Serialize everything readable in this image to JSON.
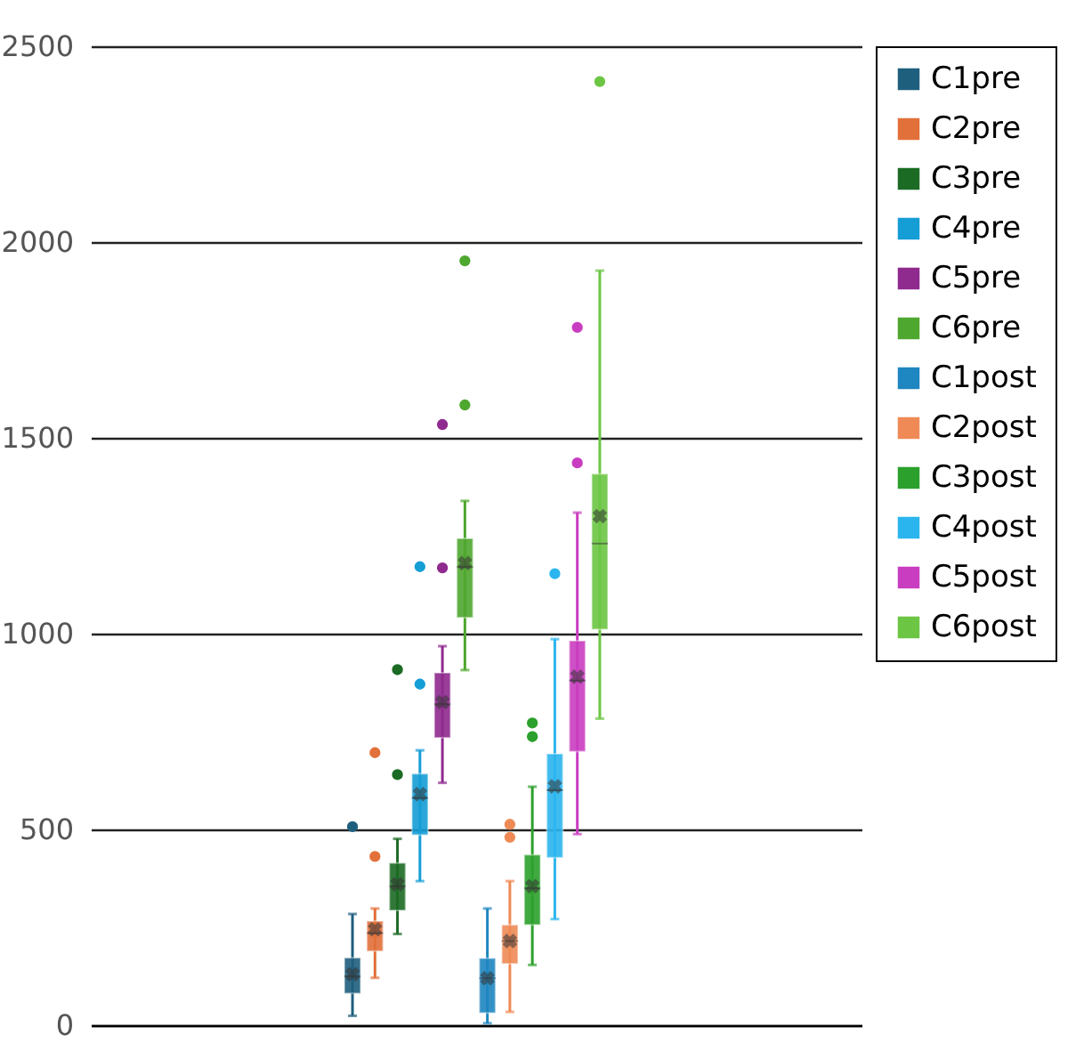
{
  "chart_data": {
    "type": "box",
    "categories": [
      null
    ],
    "ylim": [
      0,
      2500
    ],
    "yticks": [
      0,
      500,
      1000,
      1500,
      2000,
      2500
    ],
    "grid": "y",
    "legend": "right",
    "series": [
      {
        "name": "C1pre",
        "color": "#1f5f7e",
        "boxes": [
          {
            "low": 24,
            "q1": 81,
            "median": 125,
            "q3": 172,
            "high": 284,
            "mean": 130,
            "outliers": [
              507
            ]
          }
        ]
      },
      {
        "name": "C2pre",
        "color": "#e2703a",
        "boxes": [
          {
            "low": 121,
            "q1": 189,
            "median": 235,
            "q3": 266,
            "high": 298,
            "mean": 245,
            "outliers": [
              431,
              696
            ]
          }
        ]
      },
      {
        "name": "C3pre",
        "color": "#1c6b24",
        "boxes": [
          {
            "low": 233,
            "q1": 293,
            "median": 355,
            "q3": 414,
            "high": 476,
            "mean": 360,
            "outliers": [
              640,
              908
            ]
          }
        ]
      },
      {
        "name": "C4pre",
        "color": "#159dd6",
        "boxes": [
          {
            "low": 368,
            "q1": 486,
            "median": 580,
            "q3": 642,
            "high": 702,
            "mean": 590,
            "outliers": [
              871,
              1171
            ]
          }
        ]
      },
      {
        "name": "C5pre",
        "color": "#8f2a8f",
        "boxes": [
          {
            "low": 619,
            "q1": 734,
            "median": 820,
            "q3": 900,
            "high": 968,
            "mean": 825,
            "outliers": [
              1168,
              1534
            ]
          }
        ]
      },
      {
        "name": "C6pre",
        "color": "#4ea72e",
        "boxes": [
          {
            "low": 907,
            "q1": 1041,
            "median": 1170,
            "q3": 1243,
            "high": 1339,
            "mean": 1180,
            "outliers": [
              1584,
              1952
            ]
          }
        ]
      },
      {
        "name": "C1post",
        "color": "#1e86c0",
        "boxes": [
          {
            "low": 5,
            "q1": 31,
            "median": 120,
            "q3": 171,
            "high": 298,
            "mean": 120
          }
        ]
      },
      {
        "name": "C2post",
        "color": "#ef8a56",
        "boxes": [
          {
            "low": 34,
            "q1": 157,
            "median": 215,
            "q3": 256,
            "high": 368,
            "mean": 215,
            "outliers": [
              480,
              513
            ]
          }
        ]
      },
      {
        "name": "C3post",
        "color": "#2ca02c",
        "boxes": [
          {
            "low": 154,
            "q1": 256,
            "median": 350,
            "q3": 435,
            "high": 609,
            "mean": 355,
            "outliers": [
              737,
              772
            ]
          }
        ]
      },
      {
        "name": "C4post",
        "color": "#2bb5ee",
        "boxes": [
          {
            "low": 271,
            "q1": 428,
            "median": 600,
            "q3": 693,
            "high": 986,
            "mean": 610,
            "outliers": [
              1153
            ]
          }
        ]
      },
      {
        "name": "C5post",
        "color": "#c93dc0",
        "boxes": [
          {
            "low": 488,
            "q1": 699,
            "median": 880,
            "q3": 982,
            "high": 1309,
            "mean": 890,
            "outliers": [
              1436,
              1782
            ]
          }
        ]
      },
      {
        "name": "C6post",
        "color": "#6cc644",
        "boxes": [
          {
            "low": 783,
            "q1": 1011,
            "median": 1230,
            "q3": 1408,
            "high": 1927,
            "mean": 1300,
            "outliers": [
              2410
            ]
          }
        ]
      }
    ]
  }
}
